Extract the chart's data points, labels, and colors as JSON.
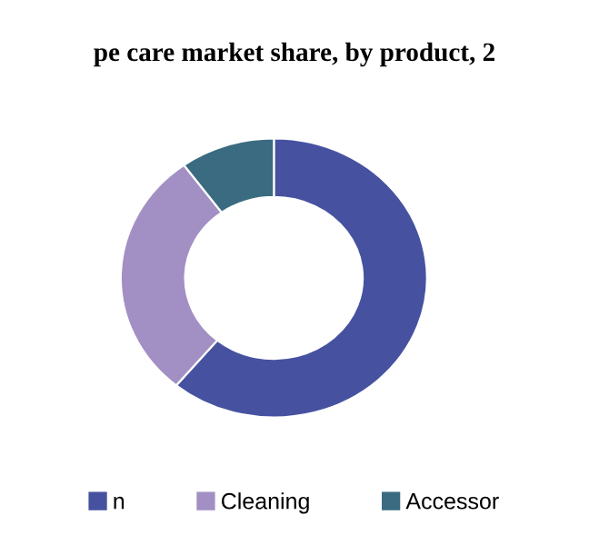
{
  "chart_data": {
    "type": "donut",
    "title": "pe care market share, by product, 2",
    "categories": [
      "n",
      "Cleaning",
      "Accessor"
    ],
    "values": [
      61,
      29,
      10
    ],
    "colors": [
      "#4652a0",
      "#a28fc3",
      "#3a6b80"
    ],
    "legend": "bottom"
  }
}
